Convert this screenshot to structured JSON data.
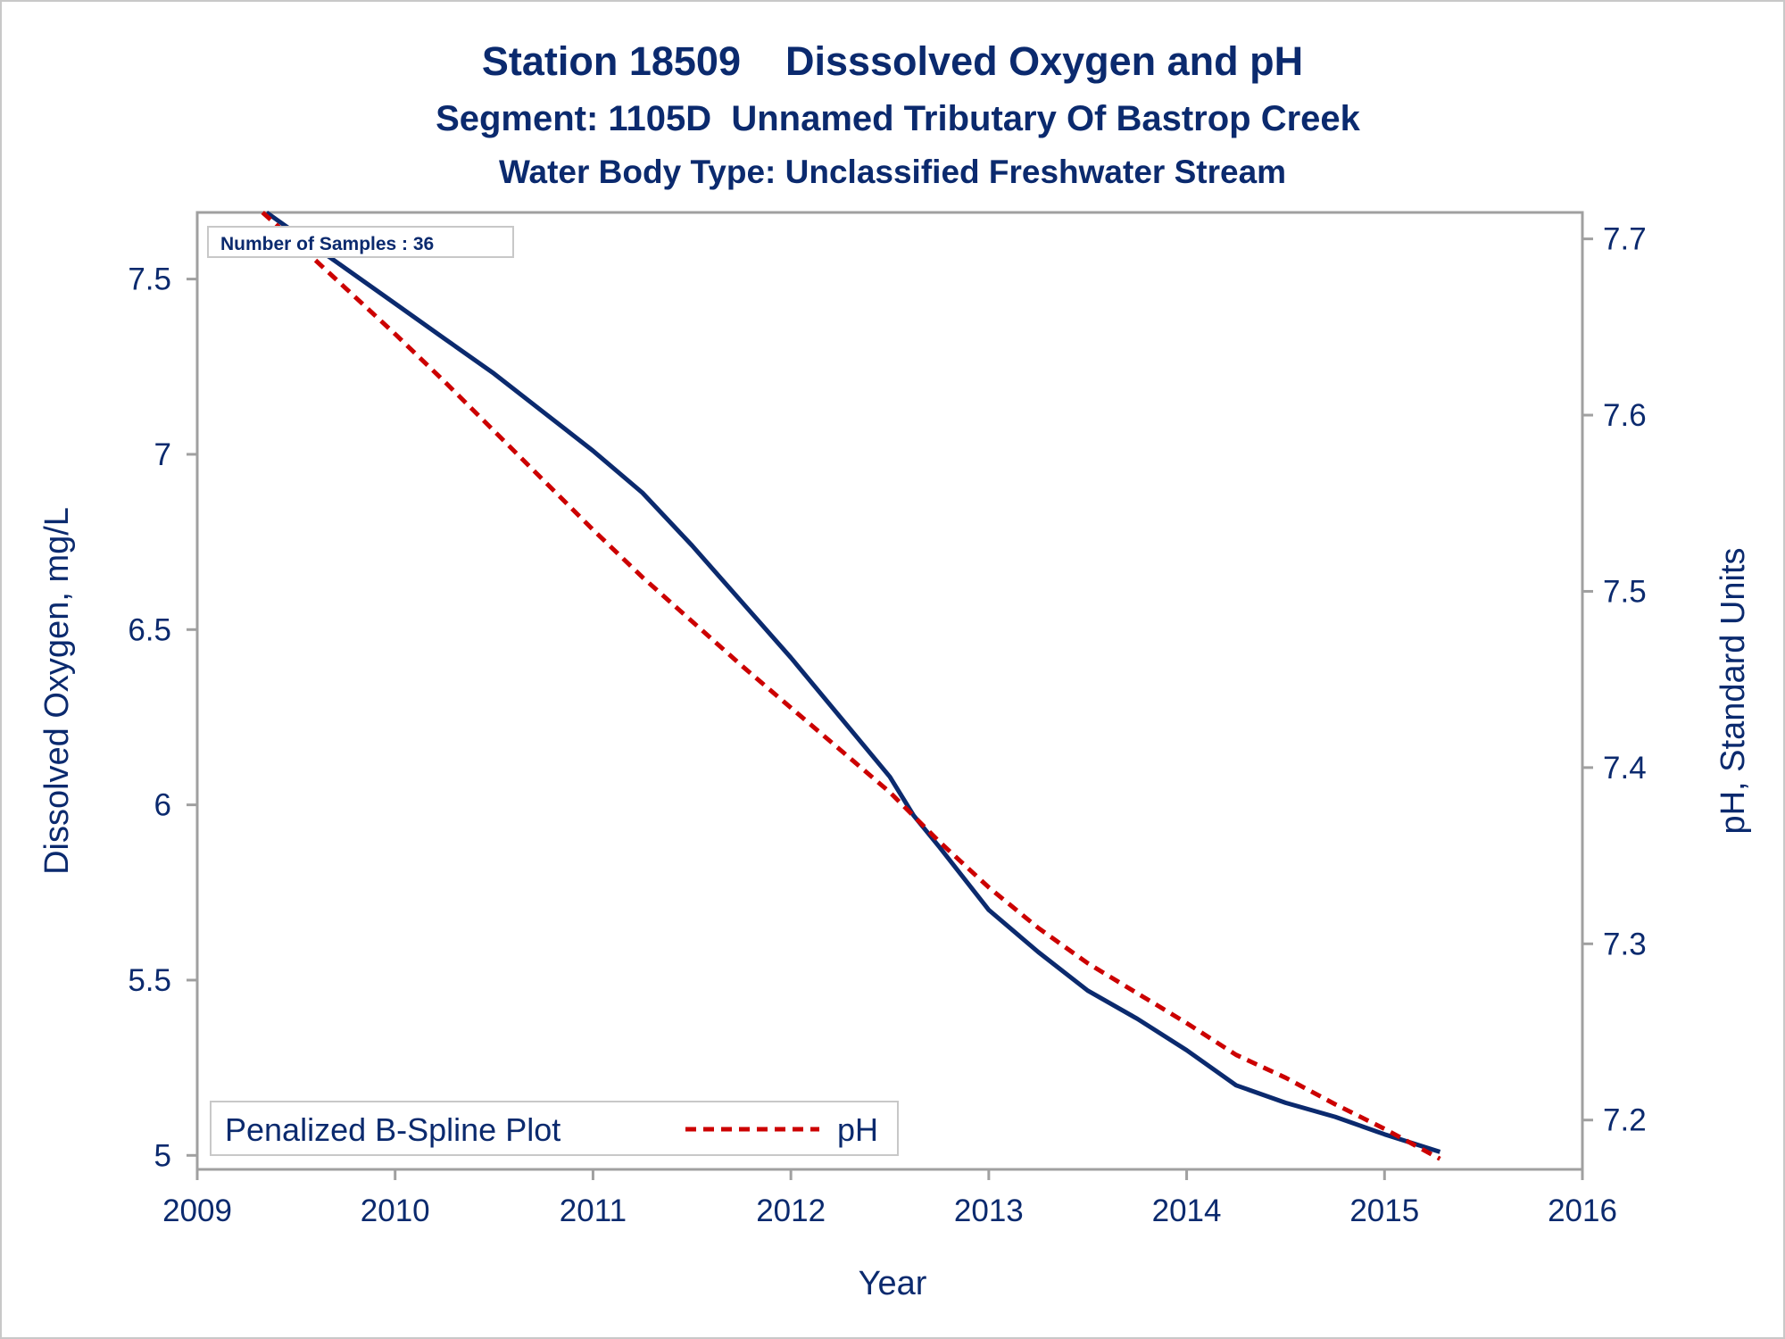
{
  "chart_data": {
    "type": "line",
    "title": "Station 18509    Disssolved Oxygen and pH",
    "subtitle": "Segment: 1105D  Unnamed Tributary Of Bastrop Creek",
    "subtitle2": "Water Body Type: Unclassified Freshwater Stream",
    "xlabel": "Year",
    "ylabel_left": "Dissolved Oxygen, mg/L",
    "ylabel_right": "pH, Standard Units",
    "xlim": [
      2009,
      2016
    ],
    "ylim_left": [
      4.96,
      7.69
    ],
    "ylim_right": [
      7.172,
      7.715
    ],
    "x_ticks": [
      "2009",
      "2010",
      "2011",
      "2012",
      "2013",
      "2014",
      "2015",
      "2016"
    ],
    "y_left_ticks": [
      "5",
      "5.5",
      "6",
      "6.5",
      "7",
      "7.5"
    ],
    "y_right_ticks": [
      "7.2",
      "7.3",
      "7.4",
      "7.5",
      "7.6",
      "7.7"
    ],
    "annotation": "Number of Samples : 36",
    "legend": {
      "label": "Penalized B-Spline Plot",
      "entry": "pH",
      "position": "bottom-left"
    },
    "series": [
      {
        "name": "Dissolved Oxygen",
        "axis": "left",
        "color": "#0b2a6e",
        "style": "solid",
        "points": [
          [
            2009.35,
            7.69
          ],
          [
            2009.5,
            7.63
          ],
          [
            2009.75,
            7.53
          ],
          [
            2010.0,
            7.43
          ],
          [
            2010.25,
            7.33
          ],
          [
            2010.5,
            7.23
          ],
          [
            2010.75,
            7.12
          ],
          [
            2011.0,
            7.01
          ],
          [
            2011.25,
            6.89
          ],
          [
            2011.5,
            6.74
          ],
          [
            2011.75,
            6.58
          ],
          [
            2012.0,
            6.42
          ],
          [
            2012.25,
            6.25
          ],
          [
            2012.5,
            6.08
          ],
          [
            2012.62,
            5.97
          ],
          [
            2012.75,
            5.88
          ],
          [
            2013.0,
            5.7
          ],
          [
            2013.25,
            5.58
          ],
          [
            2013.5,
            5.47
          ],
          [
            2013.75,
            5.39
          ],
          [
            2014.0,
            5.3
          ],
          [
            2014.25,
            5.2
          ],
          [
            2014.5,
            5.15
          ],
          [
            2014.75,
            5.11
          ],
          [
            2015.0,
            5.06
          ],
          [
            2015.28,
            5.01
          ]
        ]
      },
      {
        "name": "pH",
        "axis": "right",
        "color": "#cc0000",
        "style": "dashed",
        "points": [
          [
            2009.33,
            7.715
          ],
          [
            2009.5,
            7.698
          ],
          [
            2009.75,
            7.672
          ],
          [
            2010.0,
            7.646
          ],
          [
            2010.25,
            7.619
          ],
          [
            2010.5,
            7.591
          ],
          [
            2010.75,
            7.563
          ],
          [
            2011.0,
            7.535
          ],
          [
            2011.25,
            7.508
          ],
          [
            2011.5,
            7.483
          ],
          [
            2011.75,
            7.458
          ],
          [
            2012.0,
            7.434
          ],
          [
            2012.25,
            7.41
          ],
          [
            2012.5,
            7.386
          ],
          [
            2012.75,
            7.358
          ],
          [
            2013.0,
            7.332
          ],
          [
            2013.25,
            7.309
          ],
          [
            2013.5,
            7.289
          ],
          [
            2013.75,
            7.272
          ],
          [
            2014.0,
            7.255
          ],
          [
            2014.25,
            7.237
          ],
          [
            2014.5,
            7.224
          ],
          [
            2014.75,
            7.209
          ],
          [
            2015.0,
            7.195
          ],
          [
            2015.28,
            7.178
          ]
        ]
      }
    ]
  }
}
